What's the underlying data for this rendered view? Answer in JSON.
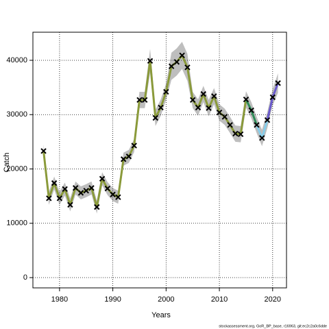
{
  "chart_data": {
    "type": "line",
    "x_label": "Years",
    "y_label": "Catch",
    "caption": "stockassessment.org, GoR_BP_base, r16963, git:ec2c2a0c6dde",
    "x": [
      1977,
      1978,
      1979,
      1980,
      1981,
      1982,
      1983,
      1984,
      1985,
      1986,
      1987,
      1988,
      1989,
      1990,
      1991,
      1992,
      1993,
      1994,
      1995,
      1996,
      1997,
      1998,
      1999,
      2000,
      2001,
      2002,
      2003,
      2004,
      2005,
      2006,
      2007,
      2008,
      2009,
      2010,
      2011,
      2012,
      2013,
      2014,
      2015,
      2016,
      2017,
      2018,
      2019,
      2020,
      2021
    ],
    "values": [
      23300,
      14600,
      17400,
      14600,
      16300,
      13400,
      16500,
      15600,
      16000,
      16500,
      13000,
      18200,
      16400,
      15300,
      14800,
      21800,
      22300,
      24300,
      32700,
      32700,
      39900,
      29400,
      31300,
      34200,
      38900,
      39700,
      40900,
      38700,
      32700,
      31300,
      33800,
      31200,
      33400,
      30400,
      29600,
      28100,
      26500,
      26400,
      32800,
      30800,
      28100,
      25700,
      29000,
      33200,
      35800
    ],
    "errors": [
      1200,
      1200,
      1200,
      1200,
      1200,
      1200,
      1200,
      1200,
      1200,
      1200,
      1200,
      1200,
      1200,
      1200,
      1200,
      1200,
      1200,
      1200,
      1500,
      1500,
      2200,
      1500,
      1500,
      1500,
      2500,
      2500,
      2500,
      2500,
      1500,
      1500,
      1500,
      1500,
      1500,
      1500,
      1500,
      1500,
      1500,
      1500,
      1500,
      1500,
      1500,
      1500,
      1500,
      1500,
      1800
    ],
    "colors": [
      "#8a9a3a",
      "#8a9a3a",
      "#8a9a3a",
      "#8a9a3a",
      "#8a9a3a",
      "#8a9a3a",
      "#8a9a3a",
      "#8a9a3a",
      "#8a9a3a",
      "#8a9a3a",
      "#8a9a3a",
      "#8a9a3a",
      "#8a9a3a",
      "#8a9a3a",
      "#8a9a3a",
      "#8a9a3a",
      "#8a9a3a",
      "#8a9a3a",
      "#8a9a3a",
      "#8a9a3a",
      "#8a9a3a",
      "#8a9a3a",
      "#8a9a3a",
      "#8a9a3a",
      "#8a9a3a",
      "#8a9a3a",
      "#8a9a3a",
      "#8a9a3a",
      "#8a9a3a",
      "#8a9a3a",
      "#8a9a3a",
      "#8a9a3a",
      "#8a9a3a",
      "#8a9a3a",
      "#8a9a3a",
      "#8a9a3a",
      "#8a9a3a",
      "#8a9a3a",
      "#2e8b57",
      "#2e8b57",
      "#87ceeb",
      "#87ceeb",
      "#6a5acd",
      "#6a5acd",
      "#6a5acd"
    ],
    "band_color": "#bebebe",
    "xlim": [
      1975,
      2022.6
    ],
    "ylim": [
      -1890,
      45170
    ],
    "xticks": [
      1980,
      1990,
      2000,
      2010,
      2020
    ],
    "yticks": [
      0,
      10000,
      20000,
      30000,
      40000
    ],
    "grid": true
  }
}
